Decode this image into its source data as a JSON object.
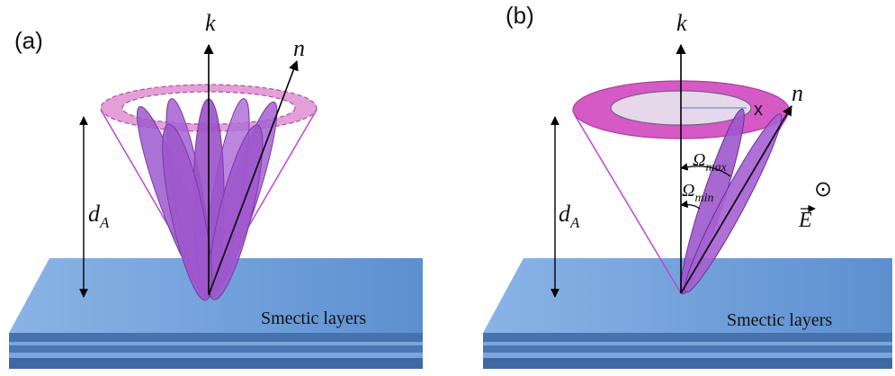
{
  "panel_a": {
    "tag": "(a)",
    "axis_k": "k",
    "director_n": "n",
    "height_label": {
      "main": "d",
      "sub": "A"
    },
    "layers_label": "Smectic layers"
  },
  "panel_b": {
    "tag": "(b)",
    "axis_k": "k",
    "director_n": "n",
    "x_marker": "x",
    "height_label": {
      "main": "d",
      "sub": "A"
    },
    "omega_max": {
      "main": "Ω",
      "sub": "max"
    },
    "omega_min": {
      "main": "Ω",
      "sub": "min"
    },
    "field_symbol": "⊙",
    "field_label": "E",
    "layers_label": "Smectic layers"
  },
  "colors": {
    "layer_top": "#6f9fdc",
    "layer_side": "#3f6aa6",
    "cone_line": "#c044d6",
    "molecule_fill": "#a25bd0",
    "ring_fill": "#d65ac6",
    "inner_ring": "#e6d8ea"
  }
}
